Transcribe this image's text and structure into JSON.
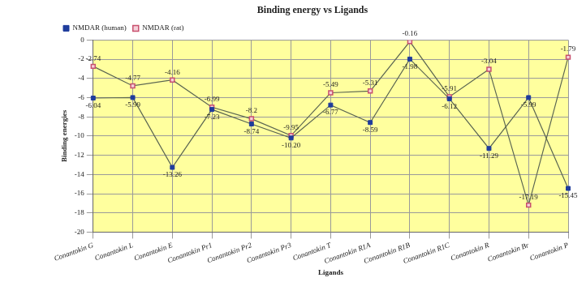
{
  "chart_data": {
    "type": "line",
    "title": "Binding energy vs Ligands",
    "x_label": "Ligands",
    "y_label": "Binding energies",
    "categories": [
      "Conantokin G",
      "Conantokin L",
      "Conantokin E",
      "Conantokin Pr1",
      "Conantokin Pr2",
      "Conantokin Pr3",
      "Conantokin T",
      "Conantokin R1A",
      "Conantokin R1B",
      "Conantokin R1C",
      "Conantokin R",
      "Conantokin Br",
      "Conantokin P"
    ],
    "series": [
      {
        "name": "NMDAR (human)",
        "color": "#1f3c9c",
        "marker": "square",
        "values": [
          -6.04,
          -5.99,
          -13.26,
          -7.23,
          -8.74,
          -10.2,
          -6.77,
          -8.59,
          -1.98,
          -6.12,
          -11.29,
          -5.99,
          -15.45
        ],
        "value_labels": [
          "-6.04",
          "-5.99",
          "-13.26",
          "-7.23",
          "-8.74",
          "-10.20",
          "-6.77",
          "-8.59",
          "-1.98",
          "-6.12",
          "-11.29",
          "-5.99",
          "-15.45"
        ]
      },
      {
        "name": "NMDAR (rat)",
        "color": "#c8506e",
        "marker": "square-open",
        "values": [
          -2.74,
          -4.77,
          -4.16,
          -6.99,
          -8.2,
          -9.95,
          -5.49,
          -5.31,
          -0.16,
          -5.91,
          -3.04,
          -17.19,
          -1.79
        ],
        "value_labels": [
          "-2.74",
          "-4.77",
          "-4.16",
          "-6.99",
          "-8.2",
          "-9.95",
          "-5.49",
          "-5.31",
          "-0.16",
          "-5.91",
          "-3.04",
          "-17.19",
          "-1.79"
        ]
      }
    ],
    "ylim": [
      -20,
      0
    ],
    "yticks": [
      -20,
      -18,
      -16,
      -14,
      -12,
      -10,
      -8,
      -6,
      -4,
      -2,
      0
    ],
    "grid": true,
    "legend": "top-left",
    "data_labels": true
  }
}
